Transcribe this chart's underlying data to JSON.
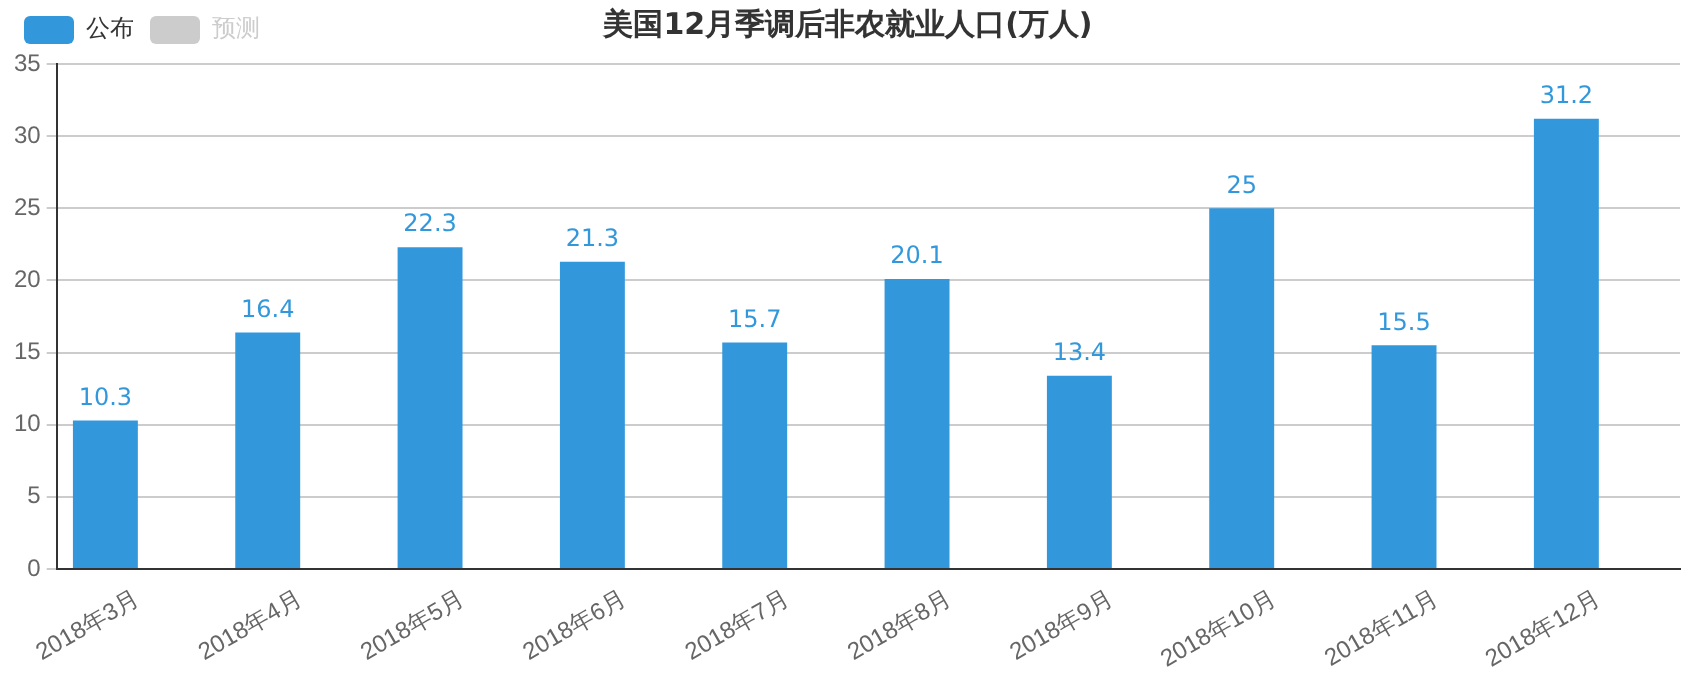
{
  "chart_data": {
    "type": "bar",
    "title": "美国12月季调后非农就业人口(万人)",
    "categories": [
      "2018年3月",
      "2018年4月",
      "2018年5月",
      "2018年6月",
      "2018年7月",
      "2018年8月",
      "2018年9月",
      "2018年10月",
      "2018年11月",
      "2018年12月"
    ],
    "series": [
      {
        "name": "公布",
        "color": "#3398db",
        "values": [
          10.3,
          16.4,
          22.3,
          21.3,
          15.7,
          20.1,
          13.4,
          25,
          15.5,
          31.2
        ]
      },
      {
        "name": "预测",
        "color": "#cccccc",
        "values": [
          null,
          null,
          null,
          null,
          null,
          null,
          null,
          null,
          null,
          null
        ]
      }
    ],
    "ylim": [
      0,
      35
    ],
    "yticks": [
      0,
      5,
      10,
      15,
      20,
      25,
      30,
      35
    ],
    "grid": "y",
    "legend": "top left",
    "data_labels": true
  }
}
